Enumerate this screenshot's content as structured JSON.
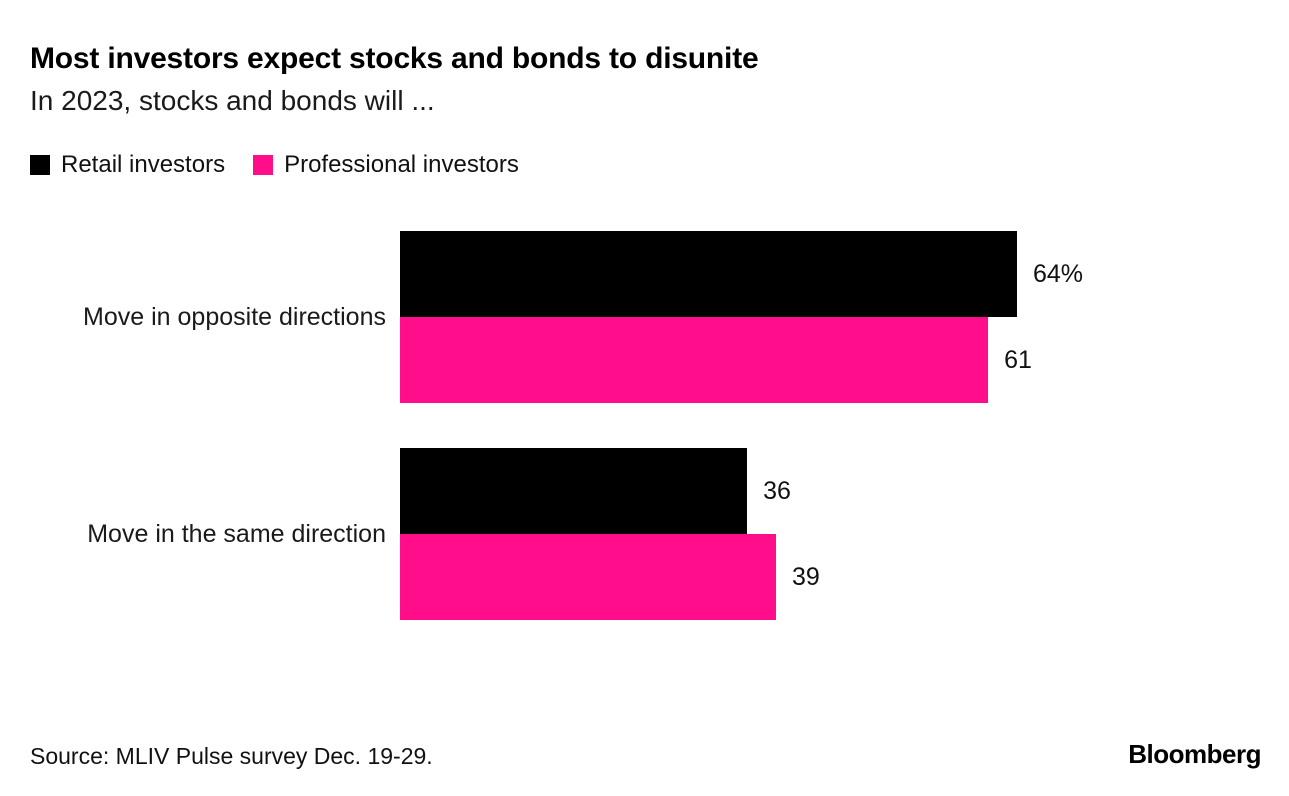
{
  "header": {
    "title": "Most investors expect stocks and bonds to disunite",
    "subtitle": "In 2023, stocks and bonds will ..."
  },
  "legend": [
    {
      "label": "Retail investors",
      "color": "#000000"
    },
    {
      "label": "Professional investors",
      "color": "#FF0D8A"
    }
  ],
  "chart_data": {
    "type": "bar",
    "orientation": "horizontal",
    "title": "Most investors expect stocks and bonds to disunite",
    "subtitle": "In 2023, stocks and bonds will ...",
    "categories": [
      "Move in opposite directions",
      "Move in the same direction"
    ],
    "series": [
      {
        "name": "Retail investors",
        "color": "#000000",
        "values": [
          64,
          36
        ]
      },
      {
        "name": "Professional investors",
        "color": "#FF0D8A",
        "values": [
          61,
          39
        ]
      }
    ],
    "value_labels": [
      [
        "64%",
        "36"
      ],
      [
        "61",
        "39"
      ]
    ],
    "xlim": [
      0,
      64
    ],
    "grid": false,
    "legend_position": "top-left",
    "unit": "percent"
  },
  "footer": {
    "source": "Source: MLIV Pulse survey Dec. 19-29.",
    "brand": "Bloomberg"
  }
}
